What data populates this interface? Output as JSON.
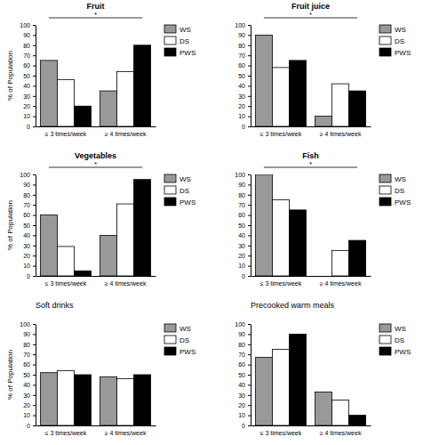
{
  "chart_data": [
    {
      "type": "bar",
      "title": "Fruit",
      "annotation": "*",
      "y_label": "% of Population",
      "categories": [
        "≤ 3 times/week",
        "≥ 4 times/week"
      ],
      "series": [
        {
          "name": "WS",
          "color": "#999999",
          "values": [
            65,
            35
          ]
        },
        {
          "name": "DS",
          "color": "#ffffff",
          "values": [
            46,
            54
          ]
        },
        {
          "name": "PWS",
          "color": "#000000",
          "values": [
            20,
            80
          ]
        }
      ],
      "ylim": [
        0,
        100
      ],
      "yticks": [
        0,
        10,
        20,
        30,
        40,
        50,
        60,
        70,
        80,
        90,
        100
      ],
      "legend": "right"
    },
    {
      "type": "bar",
      "title": "Fruit juice",
      "annotation": "*",
      "categories": [
        "≤ 3 times/week",
        "≥ 4 times/week"
      ],
      "series": [
        {
          "name": "WS",
          "color": "#999999",
          "values": [
            90,
            10
          ]
        },
        {
          "name": "DS",
          "color": "#ffffff",
          "values": [
            58,
            42
          ]
        },
        {
          "name": "PWS",
          "color": "#000000",
          "values": [
            65,
            35
          ]
        }
      ],
      "ylim": [
        0,
        100
      ],
      "yticks": [
        0,
        10,
        20,
        30,
        40,
        50,
        60,
        70,
        80,
        90,
        100
      ],
      "legend": "right"
    },
    {
      "type": "bar",
      "title": "Vegetables",
      "annotation": "*",
      "y_label": "% of Population",
      "categories": [
        "≤ 3 times/week",
        "≥ 4 times/week"
      ],
      "series": [
        {
          "name": "WS",
          "color": "#999999",
          "values": [
            60,
            40
          ]
        },
        {
          "name": "DS",
          "color": "#ffffff",
          "values": [
            29,
            71
          ]
        },
        {
          "name": "PWS",
          "color": "#000000",
          "values": [
            5,
            95
          ]
        }
      ],
      "ylim": [
        0,
        100
      ],
      "yticks": [
        0,
        10,
        20,
        30,
        40,
        50,
        60,
        70,
        80,
        90,
        100
      ],
      "legend": "right"
    },
    {
      "type": "bar",
      "title": "Fish",
      "annotation": "*",
      "categories": [
        "≤ 3 times/week",
        "≥ 4 times/week"
      ],
      "series": [
        {
          "name": "WS",
          "color": "#999999",
          "values": [
            100,
            0
          ]
        },
        {
          "name": "DS",
          "color": "#ffffff",
          "values": [
            75,
            25
          ]
        },
        {
          "name": "PWS",
          "color": "#000000",
          "values": [
            65,
            35
          ]
        }
      ],
      "ylim": [
        0,
        100
      ],
      "yticks": [
        0,
        10,
        20,
        30,
        40,
        50,
        60,
        70,
        80,
        90,
        100
      ],
      "legend": "right"
    },
    {
      "type": "bar",
      "title": "Soft drinks",
      "y_label": "% of Population",
      "categories": [
        "≤ 3 times/week",
        "≥ 4 times/week"
      ],
      "series": [
        {
          "name": "WS",
          "color": "#999999",
          "values": [
            52,
            48
          ]
        },
        {
          "name": "DS",
          "color": "#ffffff",
          "values": [
            54,
            46
          ]
        },
        {
          "name": "PWS",
          "color": "#000000",
          "values": [
            50,
            50
          ]
        }
      ],
      "ylim": [
        0,
        100
      ],
      "yticks": [
        0,
        10,
        20,
        30,
        40,
        50,
        60,
        70,
        80,
        90,
        100
      ],
      "legend": "right"
    },
    {
      "type": "bar",
      "title": "Precooked warm meals",
      "categories": [
        "≤ 3 times/week",
        "≥ 4 times/week"
      ],
      "series": [
        {
          "name": "WS",
          "color": "#999999",
          "values": [
            67,
            33
          ]
        },
        {
          "name": "DS",
          "color": "#ffffff",
          "values": [
            75,
            25
          ]
        },
        {
          "name": "PWS",
          "color": "#000000",
          "values": [
            90,
            10
          ]
        }
      ],
      "ylim": [
        0,
        100
      ],
      "yticks": [
        0,
        10,
        20,
        30,
        40,
        50,
        60,
        70,
        80,
        90,
        100
      ],
      "legend": "right"
    }
  ]
}
